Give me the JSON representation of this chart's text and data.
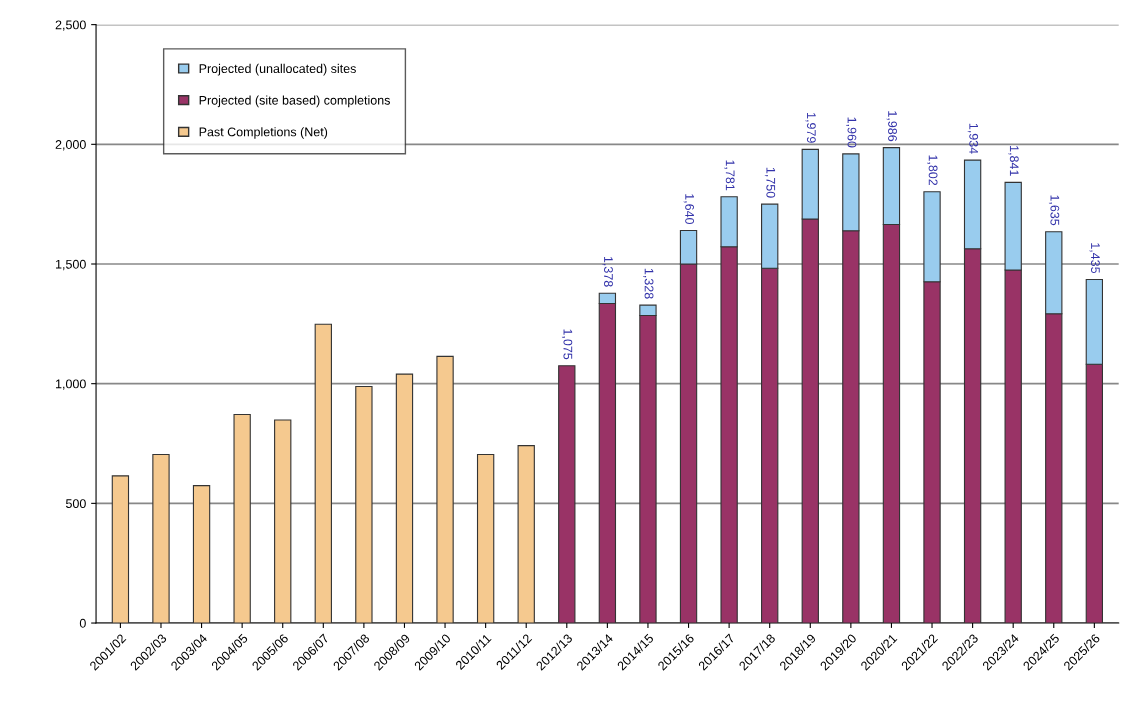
{
  "chart_data": {
    "type": "bar",
    "stacked": true,
    "categories": [
      "2001/02",
      "2002/03",
      "2003/04",
      "2004/05",
      "2005/06",
      "2006/07",
      "2007/08",
      "2008/09",
      "2009/10",
      "2010/11",
      "2011/12",
      "2012/13",
      "2013/14",
      "2014/15",
      "2015/16",
      "2016/17",
      "2017/18",
      "2018/19",
      "2019/20",
      "2020/21",
      "2021/22",
      "2022/23",
      "2023/24",
      "2024/25",
      "2025/26"
    ],
    "series": [
      {
        "name": "Past Completions (Net)",
        "color": "#f5c98f",
        "values": [
          615,
          704,
          574,
          871,
          848,
          1248,
          988,
          1040,
          1114,
          704,
          741,
          null,
          null,
          null,
          null,
          null,
          null,
          null,
          null,
          null,
          null,
          null,
          null,
          null,
          null
        ]
      },
      {
        "name": "Projected (site based) completions",
        "color": "#993366",
        "values": [
          null,
          null,
          null,
          null,
          null,
          null,
          null,
          null,
          null,
          null,
          null,
          1075,
          1335,
          1285,
          1500,
          1572,
          1482,
          1688,
          1639,
          1665,
          1426,
          1564,
          1475,
          1292,
          1081
        ]
      },
      {
        "name": "Projected (unallocated) sites",
        "color": "#99ccee",
        "values": [
          null,
          null,
          null,
          null,
          null,
          null,
          null,
          null,
          null,
          null,
          null,
          0,
          43,
          43,
          140,
          209,
          268,
          291,
          321,
          321,
          376,
          370,
          366,
          343,
          354
        ]
      }
    ],
    "totals": [
      null,
      null,
      null,
      null,
      null,
      null,
      null,
      null,
      null,
      null,
      null,
      "1,075",
      "1,378",
      "1,328",
      "1,640",
      "1,781",
      "1,750",
      "1,979",
      "1,960",
      "1,986",
      "1,802",
      "1,934",
      "1,841",
      "1,635",
      "1,435"
    ],
    "ylim": [
      0,
      2500
    ],
    "yticks": [
      {
        "value": 0,
        "label": "0"
      },
      {
        "value": 500,
        "label": "500"
      },
      {
        "value": 1000,
        "label": "1,000"
      },
      {
        "value": 1500,
        "label": "1,500"
      },
      {
        "value": 2000,
        "label": "2,000"
      },
      {
        "value": 2500,
        "label": "2,500"
      }
    ],
    "grid": "y",
    "legend": "top left"
  }
}
